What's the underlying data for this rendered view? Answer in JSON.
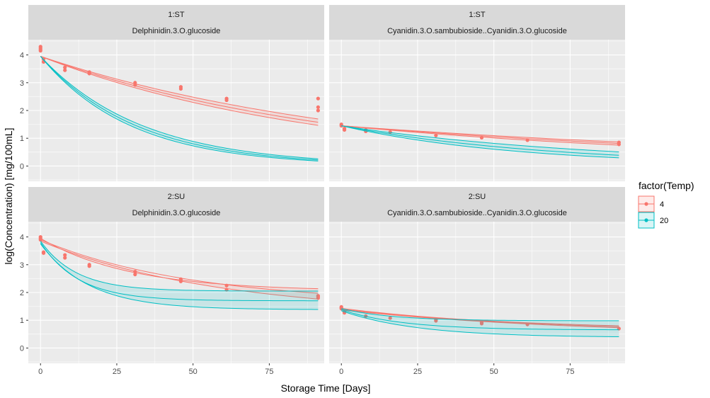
{
  "chart_data": {
    "type": "line",
    "xlabel": "Storage Time [Days]",
    "ylabel": "log(Concentration) [mg/100mL]",
    "xlim": [
      -4,
      93
    ],
    "ylim": [
      -0.55,
      4.55
    ],
    "xticks": [
      0,
      25,
      50,
      75
    ],
    "xtick_labels": [
      "0",
      "25",
      "50",
      "75"
    ],
    "yticks": [
      0,
      1,
      2,
      3,
      4
    ],
    "ytick_labels": [
      "0",
      "1",
      "2",
      "3",
      "4"
    ],
    "grid": true,
    "legend": {
      "title": "factor(Temp)",
      "position": "right",
      "entries": [
        {
          "label": "4",
          "color": "#F8766D"
        },
        {
          "label": "20",
          "color": "#00BFC4"
        }
      ]
    },
    "panels": [
      {
        "strip_top": "1:ST",
        "strip_bottom": "Delphinidin.3.O.glucoside",
        "series": [
          {
            "name": "4",
            "color": "#F8766D",
            "model": "exp",
            "ci": true,
            "c0": 3.95,
            "kfit": 0.0101,
            "kup": 0.0093,
            "klow": 0.0109,
            "xmax": 91,
            "points": [
              [
                0,
                4.3
              ],
              [
                0,
                4.25
              ],
              [
                0,
                4.2
              ],
              [
                0,
                4.15
              ],
              [
                1,
                3.85
              ],
              [
                1,
                3.75
              ],
              [
                8,
                3.55
              ],
              [
                8,
                3.45
              ],
              [
                16,
                3.38
              ],
              [
                16,
                3.33
              ],
              [
                31,
                3.0
              ],
              [
                31,
                2.92
              ],
              [
                46,
                2.85
              ],
              [
                46,
                2.78
              ],
              [
                61,
                2.43
              ],
              [
                61,
                2.37
              ],
              [
                91,
                2.43
              ],
              [
                91,
                2.12
              ],
              [
                91,
                2.0
              ]
            ]
          },
          {
            "name": "20",
            "color": "#00BFC4",
            "model": "exp",
            "ci": true,
            "c0": 3.95,
            "kfit": 0.0319,
            "kup": 0.0299,
            "klow": 0.0339,
            "xmax": 91,
            "points": []
          }
        ]
      },
      {
        "strip_top": "1:ST",
        "strip_bottom": "Cyanidin.3.O.sambubioside..Cyanidin.3.O.glucoside",
        "series": [
          {
            "name": "4",
            "color": "#F8766D",
            "model": "exp",
            "ci": true,
            "c0": 1.45,
            "kfit": 0.00637,
            "kup": 0.00564,
            "klow": 0.00725,
            "xmax": 91,
            "points": [
              [
                0,
                1.5
              ],
              [
                0,
                1.45
              ],
              [
                1,
                1.35
              ],
              [
                1,
                1.3
              ],
              [
                8,
                1.3
              ],
              [
                8,
                1.25
              ],
              [
                16,
                1.22
              ],
              [
                31,
                1.1
              ],
              [
                46,
                1.02
              ],
              [
                61,
                0.93
              ],
              [
                91,
                0.85
              ],
              [
                91,
                0.78
              ]
            ]
          },
          {
            "name": "20",
            "color": "#00BFC4",
            "model": "exp",
            "ci": true,
            "c0": 1.45,
            "kfit": 0.0145,
            "kup": 0.0115,
            "klow": 0.0175,
            "xmax": 91,
            "points": []
          }
        ]
      },
      {
        "strip_top": "2:SU",
        "strip_bottom": "Delphinidin.3.O.glucoside",
        "series": [
          {
            "name": "4",
            "color": "#F8766D",
            "model": "plateau",
            "ci": true,
            "c0": 3.9,
            "cinf": 1.6,
            "kfit": 0.02,
            "c0u": 3.95,
            "cinfu": 2.05,
            "ku": 0.034,
            "c0l": 3.85,
            "cinfl": 1.2,
            "kl": 0.017,
            "xmax": 91,
            "points": [
              [
                0,
                4.0
              ],
              [
                0,
                3.95
              ],
              [
                0,
                3.9
              ],
              [
                1,
                3.45
              ],
              [
                1,
                3.42
              ],
              [
                8,
                3.35
              ],
              [
                8,
                3.25
              ],
              [
                16,
                3.0
              ],
              [
                16,
                2.95
              ],
              [
                31,
                2.75
              ],
              [
                31,
                2.65
              ],
              [
                46,
                2.48
              ],
              [
                46,
                2.4
              ],
              [
                61,
                2.25
              ],
              [
                61,
                2.1
              ],
              [
                91,
                1.88
              ],
              [
                91,
                1.85
              ],
              [
                91,
                1.8
              ]
            ]
          },
          {
            "name": "20",
            "color": "#00BFC4",
            "model": "plateau",
            "ci": true,
            "c0": 3.8,
            "cinf": 1.7,
            "kfit": 0.08,
            "c0u": 3.85,
            "cinfu": 2.05,
            "ku": 0.085,
            "c0l": 3.75,
            "cinfl": 1.38,
            "kl": 0.062,
            "xmax": 91,
            "points": []
          }
        ]
      },
      {
        "strip_top": "2:SU",
        "strip_bottom": "Cyanidin.3.O.sambubioside..Cyanidin.3.O.glucoside",
        "series": [
          {
            "name": "4",
            "color": "#F8766D",
            "model": "plateau",
            "ci": true,
            "c0": 1.4,
            "cinf": 0.55,
            "kfit": 0.015,
            "c0u": 1.43,
            "cinfu": 0.65,
            "ku": 0.018,
            "c0l": 1.37,
            "cinfl": 0.45,
            "kl": 0.013,
            "xmax": 91,
            "points": [
              [
                0,
                1.48
              ],
              [
                0,
                1.45
              ],
              [
                0,
                1.42
              ],
              [
                1,
                1.3
              ],
              [
                1,
                1.27
              ],
              [
                8,
                1.15
              ],
              [
                16,
                1.08
              ],
              [
                31,
                1.02
              ],
              [
                31,
                0.98
              ],
              [
                46,
                0.92
              ],
              [
                46,
                0.88
              ],
              [
                61,
                0.85
              ],
              [
                91,
                0.7
              ]
            ]
          },
          {
            "name": "20",
            "color": "#00BFC4",
            "model": "plateau",
            "ci": true,
            "c0": 1.38,
            "cinf": 0.65,
            "kfit": 0.05,
            "c0u": 1.42,
            "cinfu": 0.98,
            "ku": 0.06,
            "c0l": 1.34,
            "cinfl": 0.38,
            "kl": 0.04,
            "xmax": 91,
            "points": []
          }
        ]
      }
    ]
  }
}
